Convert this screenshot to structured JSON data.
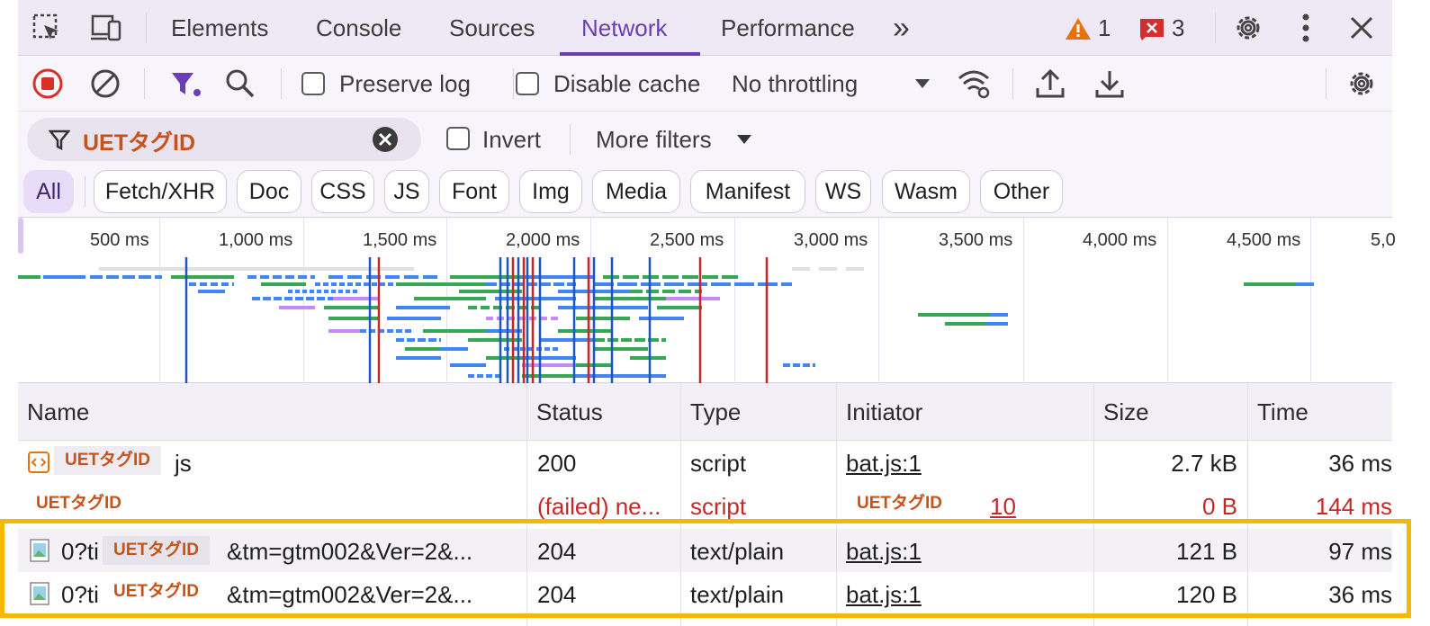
{
  "tabs": {
    "elements": "Elements",
    "console": "Console",
    "sources": "Sources",
    "network": "Network",
    "performance": "Performance",
    "more": "»",
    "warning_count": "1",
    "error_count": "3"
  },
  "toolbar": {
    "preserve_log": "Preserve log",
    "disable_cache": "Disable cache",
    "throttling": "No throttling"
  },
  "filter": {
    "value": "UETタグID",
    "invert": "Invert",
    "more_filters": "More filters"
  },
  "types": [
    "All",
    "Fetch/XHR",
    "Doc",
    "CSS",
    "JS",
    "Font",
    "Img",
    "Media",
    "Manifest",
    "WS",
    "Wasm",
    "Other"
  ],
  "overview": {
    "ticks": [
      "500 ms",
      "1,000 ms",
      "1,500 ms",
      "2,000 ms",
      "2,500 ms",
      "3,000 ms",
      "3,500 ms",
      "4,000 ms",
      "4,500 ms",
      "5,0"
    ]
  },
  "columns": {
    "name": "Name",
    "status": "Status",
    "type": "Type",
    "initiator": "Initiator",
    "size": "Size",
    "time": "Time"
  },
  "rows": [
    {
      "mask": "UETタグID",
      "name_suffix": "js",
      "status": "200",
      "type": "script",
      "initiator": "bat.js:1",
      "size": "2.7 kB",
      "time": "36 ms"
    },
    {
      "mask": "UETタグID",
      "status": "(failed) ne...",
      "type": "script",
      "initiator_mask": "UETタグID",
      "initiator_suffix": "10",
      "size": "0 B",
      "time": "144 ms"
    },
    {
      "name_prefix": "0?ti",
      "mask": "UETタグID",
      "name_suffix": "&tm=gtm002&Ver=2&...",
      "status": "204",
      "type": "text/plain",
      "initiator": "bat.js:1",
      "size": "121 B",
      "time": "97 ms"
    },
    {
      "name_prefix": "0?ti",
      "mask": "UETタグID",
      "name_suffix": "&tm=gtm002&Ver=2&...",
      "status": "204",
      "type": "text/plain",
      "initiator": "bat.js:1",
      "size": "120 B",
      "time": "36 ms"
    }
  ],
  "colors": {
    "accent": "#6a3fb5",
    "error": "#c62828",
    "highlight": "#f5b800",
    "mask_text": "#c7521a"
  }
}
